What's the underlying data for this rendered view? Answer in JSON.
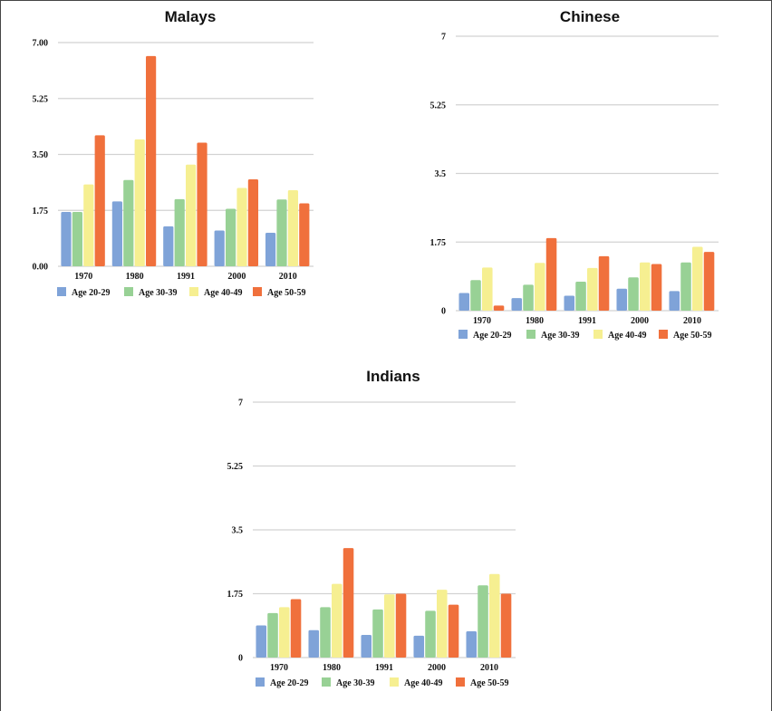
{
  "chart_data": [
    {
      "type": "bar",
      "title": "Malays",
      "categories": [
        "1970",
        "1980",
        "1991",
        "2000",
        "2010"
      ],
      "ylim": [
        0,
        7
      ],
      "yticks": [
        "0.00",
        "1.75",
        "3.50",
        "5.25",
        "7.00"
      ],
      "grid": true,
      "legend_position": "bottom",
      "series": [
        {
          "name": "Age 20-29",
          "color": "#7fa3d8",
          "values": [
            1.7,
            2.03,
            1.25,
            1.12,
            1.05
          ]
        },
        {
          "name": "Age 30-39",
          "color": "#98d195",
          "values": [
            1.7,
            2.7,
            2.1,
            1.8,
            2.09
          ]
        },
        {
          "name": "Age 40-49",
          "color": "#f6ef91",
          "values": [
            2.56,
            3.97,
            3.18,
            2.45,
            2.38
          ]
        },
        {
          "name": "Age 50-59",
          "color": "#f0703c",
          "values": [
            4.1,
            6.58,
            3.87,
            2.72,
            1.97
          ]
        }
      ]
    },
    {
      "type": "bar",
      "title": "Chinese",
      "categories": [
        "1970",
        "1980",
        "1991",
        "2000",
        "2010"
      ],
      "ylim": [
        0,
        7
      ],
      "yticks": [
        "0",
        "1.75",
        "3.5",
        "5.25",
        "7"
      ],
      "grid": true,
      "legend_position": "bottom",
      "series": [
        {
          "name": "Age 20-29",
          "color": "#7fa3d8",
          "values": [
            0.45,
            0.32,
            0.38,
            0.56,
            0.5
          ]
        },
        {
          "name": "Age 30-39",
          "color": "#98d195",
          "values": [
            0.78,
            0.66,
            0.74,
            0.85,
            1.23
          ]
        },
        {
          "name": "Age 40-49",
          "color": "#f6ef91",
          "values": [
            1.1,
            1.22,
            1.09,
            1.23,
            1.63
          ]
        },
        {
          "name": "Age 50-59",
          "color": "#f0703c",
          "values": [
            0.13,
            1.85,
            1.39,
            1.19,
            1.5
          ]
        }
      ]
    },
    {
      "type": "bar",
      "title": "Indians",
      "categories": [
        "1970",
        "1980",
        "1991",
        "2000",
        "2010"
      ],
      "ylim": [
        0,
        7
      ],
      "yticks": [
        "0",
        "1.75",
        "3.5",
        "5.25",
        "7"
      ],
      "grid": true,
      "legend_position": "bottom",
      "series": [
        {
          "name": "Age 20-29",
          "color": "#7fa3d8",
          "values": [
            0.88,
            0.75,
            0.62,
            0.6,
            0.72
          ]
        },
        {
          "name": "Age 30-39",
          "color": "#98d195",
          "values": [
            1.22,
            1.38,
            1.32,
            1.28,
            1.98
          ]
        },
        {
          "name": "Age 40-49",
          "color": "#f6ef91",
          "values": [
            1.38,
            2.02,
            1.73,
            1.86,
            2.29
          ]
        },
        {
          "name": "Age 50-59",
          "color": "#f0703c",
          "values": [
            1.6,
            3.0,
            1.75,
            1.45,
            1.75
          ]
        }
      ]
    }
  ]
}
